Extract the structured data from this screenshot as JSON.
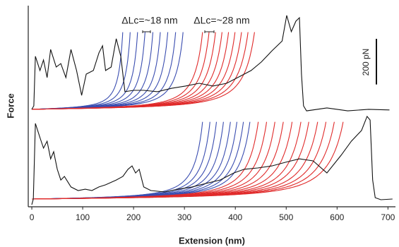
{
  "chart_data": {
    "type": "force-extension",
    "xlabel": "Extension (nm)",
    "ylabel": "Force",
    "xlim": [
      -7,
      712
    ],
    "xticks": [
      0,
      100,
      200,
      300,
      400,
      500,
      600,
      700
    ],
    "ylim": [
      0,
      850
    ],
    "annotations": [
      {
        "text": "ΔLc=~18 nm",
        "color": "#3a4db0"
      },
      {
        "text": "ΔLc=~28 nm",
        "color": "#e02a2a"
      }
    ],
    "scale_bar": {
      "value": 200,
      "label": "200 pN"
    },
    "traces": [
      {
        "color": "#111111",
        "x": [
          0,
          4,
          7,
          16,
          23,
          30,
          37,
          48,
          57,
          67,
          77,
          88,
          98,
          107,
          121,
          132,
          139,
          145,
          156,
          166,
          175,
          183,
          200,
          220,
          247,
          275,
          302,
          329,
          356,
          383,
          410,
          431,
          451,
          472,
          492,
          501,
          510,
          519,
          526,
          530,
          534,
          540,
          580,
          621,
          662,
          703
        ],
        "y": [
          427,
          442,
          659,
          597,
          643,
          566,
          689,
          612,
          627,
          566,
          689,
          597,
          488,
          581,
          597,
          674,
          705,
          597,
          612,
          736,
          658,
          504,
          510,
          510,
          504,
          519,
          529,
          541,
          529,
          541,
          572,
          597,
          634,
          683,
          726,
          838,
          767,
          813,
          828,
          581,
          442,
          420,
          433,
          420,
          427,
          424
        ]
      },
      {
        "color": "#111111",
        "x": [
          0,
          3,
          7,
          16,
          23,
          30,
          37,
          43,
          50,
          57,
          64,
          77,
          91,
          105,
          118,
          132,
          145,
          166,
          179,
          189,
          197,
          204,
          211,
          220,
          234,
          261,
          288,
          315,
          342,
          370,
          397,
          417,
          444,
          472,
          499,
          526,
          553,
          580,
          608,
          628,
          648,
          659,
          665,
          670,
          675,
          686,
          709
        ],
        "y": [
          9,
          34,
          365,
          303,
          257,
          287,
          210,
          241,
          164,
          117,
          133,
          87,
          71,
          77,
          71,
          87,
          96,
          117,
          133,
          164,
          179,
          148,
          164,
          87,
          71,
          65,
          77,
          87,
          102,
          117,
          148,
          164,
          170,
          179,
          195,
          210,
          201,
          148,
          226,
          287,
          334,
          396,
          380,
          117,
          40,
          31,
          34
        ]
      }
    ],
    "fits": [
      {
        "color": "#3a4db0",
        "offset": 427,
        "contour_lengths": [
          196,
          212,
          228,
          244,
          261,
          277,
          293,
          310,
          326
        ]
      },
      {
        "color": "#e02a2a",
        "offset": 427,
        "contour_lengths": [
          368,
          382,
          396,
          410,
          424,
          438,
          452,
          466,
          480
        ]
      },
      {
        "color": "#3a4db0",
        "offset": 34,
        "contour_lengths": [
          368,
          384,
          398,
          413,
          428,
          442,
          456,
          470
        ]
      },
      {
        "color": "#e02a2a",
        "offset": 34,
        "contour_lengths": [
          488,
          506,
          524,
          542,
          561,
          580,
          597,
          616,
          634,
          652,
          671
        ]
      }
    ]
  }
}
